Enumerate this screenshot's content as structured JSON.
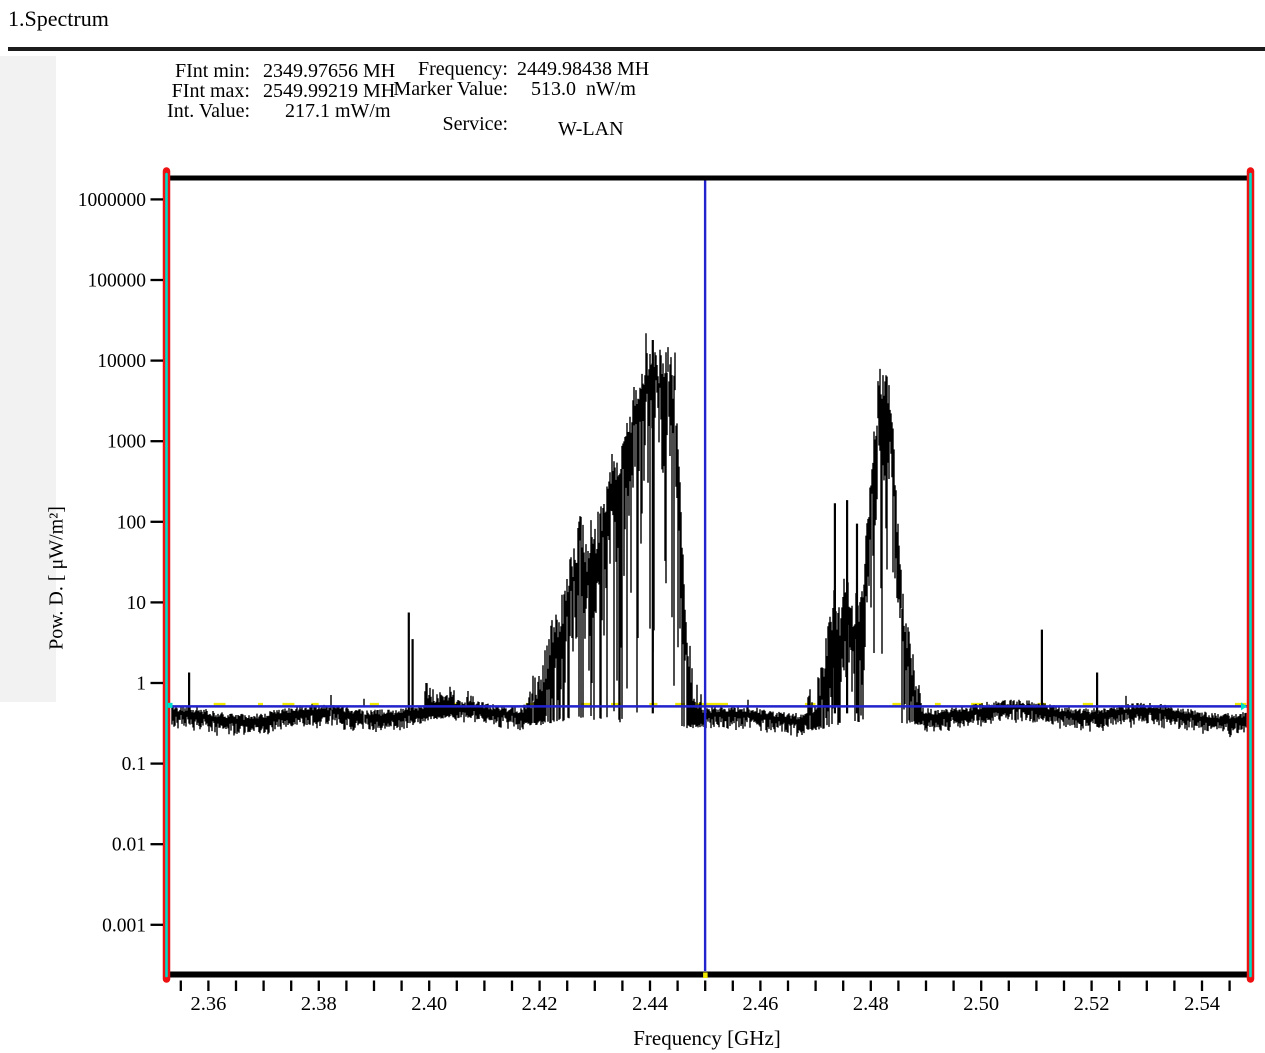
{
  "title": "1.Spectrum",
  "header": {
    "fields_left": [
      {
        "label": "FInt min:",
        "value": "2349.97656 MH"
      },
      {
        "label": "FInt max:",
        "value": "2549.99219 MH"
      },
      {
        "label": "Int. Value:",
        "value": "217.1 mW/m"
      }
    ],
    "fields_right": [
      {
        "label": "Frequency:",
        "value": "2449.98438 MH"
      },
      {
        "label": "Marker Value:",
        "value": "513.0  nW/m"
      },
      {
        "label": "Service:",
        "value": "W-LAN"
      }
    ]
  },
  "chart_data": {
    "type": "line",
    "title": "",
    "xlabel": "Frequency [GHz]",
    "ylabel": "Pow. D. [ μW/m²]",
    "x_unit": "GHz",
    "y_unit": "μW/m²",
    "x_log": false,
    "y_log": true,
    "xlim": [
      2.3523,
      2.5482
    ],
    "ylim": [
      0.00026,
      1700000
    ],
    "x_major_ticks": [
      2.36,
      2.38,
      2.4,
      2.42,
      2.44,
      2.46,
      2.48,
      2.5,
      2.52,
      2.54
    ],
    "x_minor_tick_step_GHz": 0.005,
    "y_ticks": [
      1000000,
      100000,
      10000,
      1000,
      100,
      10,
      1,
      0.1,
      0.01,
      0.001
    ],
    "y_tick_labels": [
      "1000000",
      "100000",
      "10000",
      "1000",
      "100",
      "10",
      "1",
      "0.1",
      "0.01",
      "0.001"
    ],
    "grid": false,
    "legend": "none",
    "noise_floor_band_uW_m2": [
      0.33,
      0.48
    ],
    "marker": {
      "freq_GHz": 2.44998438,
      "value_uW_m2": 0.513,
      "style": "blue-crosshair-full-span"
    },
    "threshold_trace_uW_m2": 0.52,
    "envelope_log10_uW_m2": [
      [
        2.35,
        -0.43
      ],
      [
        2.39,
        -0.42
      ],
      [
        2.3955,
        -0.38
      ],
      [
        2.3975,
        -0.36
      ],
      [
        2.3985,
        -0.3
      ],
      [
        2.4,
        -0.24
      ],
      [
        2.4015,
        -0.28
      ],
      [
        2.4035,
        -0.26
      ],
      [
        2.4055,
        -0.3
      ],
      [
        2.4075,
        -0.27
      ],
      [
        2.4095,
        -0.31
      ],
      [
        2.4115,
        -0.36
      ],
      [
        2.414,
        -0.4
      ],
      [
        2.416,
        -0.36
      ],
      [
        2.418,
        -0.22
      ],
      [
        2.42,
        0.0
      ],
      [
        2.4215,
        0.3
      ],
      [
        2.423,
        0.65
      ],
      [
        2.4245,
        1.0
      ],
      [
        2.4262,
        1.55
      ],
      [
        2.4275,
        1.9
      ],
      [
        2.4285,
        1.55
      ],
      [
        2.43,
        1.75
      ],
      [
        2.4315,
        2.15
      ],
      [
        2.433,
        2.65
      ],
      [
        2.4342,
        2.55
      ],
      [
        2.4355,
        2.9
      ],
      [
        2.437,
        3.45
      ],
      [
        2.4385,
        3.8
      ],
      [
        2.4398,
        3.9
      ],
      [
        2.4408,
        4.05
      ],
      [
        2.4418,
        3.92
      ],
      [
        2.4428,
        3.97
      ],
      [
        2.4438,
        3.92
      ],
      [
        2.4446,
        3.55
      ],
      [
        2.4453,
        2.6
      ],
      [
        2.446,
        1.5
      ],
      [
        2.4468,
        0.6
      ],
      [
        2.4476,
        0.05
      ],
      [
        2.4486,
        -0.22
      ],
      [
        2.45,
        -0.33
      ],
      [
        2.452,
        -0.4
      ],
      [
        2.456,
        -0.42
      ],
      [
        2.462,
        -0.42
      ],
      [
        2.466,
        -0.38
      ],
      [
        2.468,
        -0.3
      ],
      [
        2.47,
        -0.15
      ],
      [
        2.4713,
        0.15
      ],
      [
        2.4724,
        0.55
      ],
      [
        2.4733,
        0.95
      ],
      [
        2.4742,
        0.7
      ],
      [
        2.4752,
        1.15
      ],
      [
        2.4761,
        0.85
      ],
      [
        2.4772,
        0.6
      ],
      [
        2.4783,
        1.05
      ],
      [
        2.4792,
        1.75
      ],
      [
        2.48,
        2.45
      ],
      [
        2.4808,
        3.15
      ],
      [
        2.4816,
        3.8
      ],
      [
        2.4824,
        3.55
      ],
      [
        2.4832,
        3.65
      ],
      [
        2.484,
        3.05
      ],
      [
        2.4848,
        1.95
      ],
      [
        2.4856,
        1.15
      ],
      [
        2.4865,
        0.6
      ],
      [
        2.4875,
        0.3
      ],
      [
        2.4883,
        -0.05
      ],
      [
        2.4892,
        -0.28
      ],
      [
        2.4905,
        -0.38
      ],
      [
        2.495,
        -0.42
      ],
      [
        2.55,
        -0.42
      ]
    ],
    "narrow_spikes_GHz_uW_m2": [
      [
        2.3565,
        1.35
      ],
      [
        2.3963,
        7.5
      ],
      [
        2.397,
        3.5
      ],
      [
        2.4405,
        18000
      ],
      [
        2.4735,
        170
      ],
      [
        2.4757,
        186
      ],
      [
        2.4775,
        95
      ],
      [
        2.511,
        4.6
      ],
      [
        2.521,
        1.35
      ]
    ],
    "colors": {
      "trace": "#000000",
      "boundary_red": "#ee1111",
      "boundary_cyan": "#00dcc8",
      "crosshair_blue": "#2323cd",
      "threshold_yellow": "#f2e900",
      "axis_black": "#000000",
      "background": "#ffffff"
    }
  }
}
